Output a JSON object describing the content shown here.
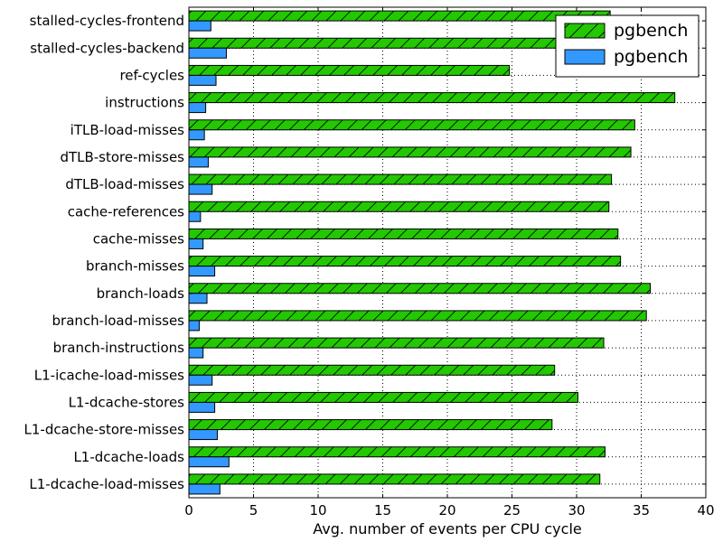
{
  "chart_data": {
    "type": "bar",
    "orientation": "horizontal",
    "categories": [
      "L1-dcache-load-misses",
      "L1-dcache-loads",
      "L1-dcache-store-misses",
      "L1-dcache-stores",
      "L1-icache-load-misses",
      "branch-instructions",
      "branch-load-misses",
      "branch-loads",
      "branch-misses",
      "cache-misses",
      "cache-references",
      "dTLB-load-misses",
      "dTLB-store-misses",
      "iTLB-load-misses",
      "instructions",
      "ref-cycles",
      "stalled-cycles-backend",
      "stalled-cycles-frontend"
    ],
    "series": [
      {
        "name": "pgbench",
        "color": "#22c800",
        "hatch": "diagonal",
        "values": [
          31.8,
          32.2,
          28.1,
          30.1,
          28.3,
          32.1,
          35.4,
          35.7,
          33.4,
          33.2,
          32.5,
          32.7,
          34.2,
          34.5,
          37.6,
          24.8,
          32.8,
          32.6
        ]
      },
      {
        "name": "pgbench",
        "color": "#3399ff",
        "hatch": "none",
        "values": [
          2.4,
          3.1,
          2.2,
          2.0,
          1.8,
          1.1,
          0.8,
          1.4,
          2.0,
          1.1,
          0.9,
          1.8,
          1.5,
          1.2,
          1.3,
          2.1,
          2.9,
          1.7
        ]
      }
    ],
    "xlabel": "Avg. number of events per CPU cycle",
    "ylabel": "",
    "title": "",
    "xlim": [
      0,
      40
    ],
    "xticks": [
      0,
      5,
      10,
      15,
      20,
      25,
      30,
      35,
      40
    ],
    "grid": true,
    "legend": "upper-right"
  }
}
